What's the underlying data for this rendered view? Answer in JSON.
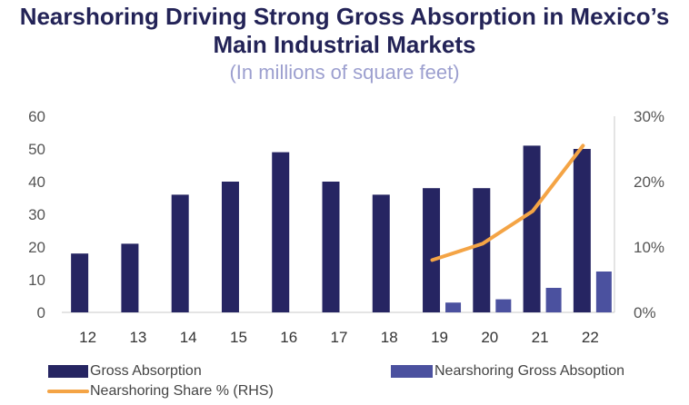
{
  "header": {
    "title_line1": "Nearshoring Driving Strong Gross Absorption in Mexico’s",
    "title_line2": "Main Industrial Markets",
    "subtitle": "(In millions of square feet)"
  },
  "legend": {
    "gross": "Gross Absorption",
    "nearshoring": "Nearshoring Gross Absoption",
    "share": "Nearshoring Share % (RHS)"
  },
  "colors": {
    "title": "#232357",
    "subtitle": "#9c9fcf",
    "gross": "#262562",
    "nearshoring": "#4b519f",
    "share": "#f4a445",
    "axis": "#c8c8c8",
    "tick": "#555555"
  },
  "chart_data": {
    "type": "bar",
    "title": "Nearshoring Driving Strong Gross Absorption in Mexico’s Main Industrial Markets",
    "subtitle": "(In millions of square feet)",
    "categories": [
      "12",
      "13",
      "14",
      "15",
      "16",
      "17",
      "18",
      "19",
      "20",
      "21",
      "22"
    ],
    "series": [
      {
        "name": "Gross Absorption",
        "type": "bar",
        "values": [
          18,
          21,
          36,
          40,
          49,
          40,
          36,
          38,
          38,
          51,
          50
        ]
      },
      {
        "name": "Nearshoring Gross Absoption",
        "type": "bar",
        "values": [
          null,
          null,
          null,
          null,
          null,
          null,
          null,
          3,
          4,
          7.5,
          12.5
        ]
      },
      {
        "name": "Nearshoring Share % (RHS)",
        "type": "line",
        "axis": "right",
        "values": [
          null,
          null,
          null,
          null,
          null,
          null,
          null,
          8,
          10.5,
          15.5,
          25.5
        ]
      }
    ],
    "ylim": [
      0,
      60
    ],
    "yticks": [
      "0",
      "10",
      "20",
      "30",
      "40",
      "50",
      "60"
    ],
    "y2lim": [
      0,
      30
    ],
    "y2ticks": [
      "0%",
      "10%",
      "20%",
      "30%"
    ],
    "legend_position": "bottom"
  }
}
